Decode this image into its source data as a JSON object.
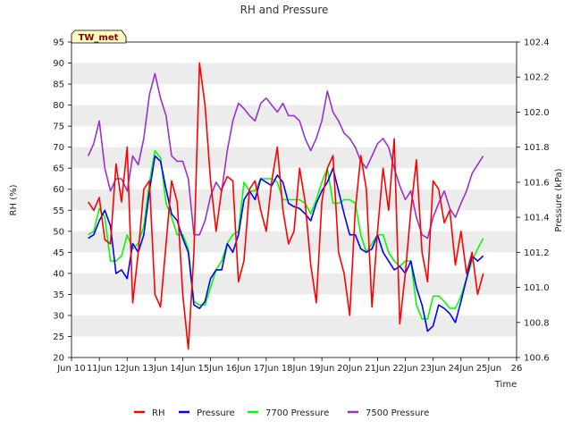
{
  "chart_data": {
    "type": "line",
    "title": "RH and Pressure",
    "badge": "TW_met",
    "xlabel": "Time",
    "ylabel": "RH (%)",
    "y2label": "Pressure (kPa)",
    "xlim": [
      10,
      26
    ],
    "ylim": [
      20,
      95
    ],
    "y2lim": [
      100.6,
      102.4
    ],
    "x_ticks": [
      10,
      11,
      12,
      13,
      14,
      15,
      16,
      17,
      18,
      19,
      20,
      21,
      22,
      23,
      24,
      25,
      26
    ],
    "x_tick_labels": [
      "Jun 10",
      "11Jun",
      "12Jun",
      "13Jun",
      "14Jun",
      "15Jun",
      "16Jun",
      "17Jun",
      "18Jun",
      "19Jun",
      "20Jun",
      "21Jun",
      "22Jun",
      "23Jun",
      "24Jun",
      "25Jun",
      "26"
    ],
    "y_ticks": [
      20,
      25,
      30,
      35,
      40,
      45,
      50,
      55,
      60,
      65,
      70,
      75,
      80,
      85,
      90,
      95
    ],
    "y2_ticks": [
      100.6,
      100.8,
      101.0,
      101.2,
      101.4,
      101.6,
      101.8,
      102.0,
      102.2,
      102.4
    ],
    "y2_tick_labels": [
      "100.6",
      "100.8",
      "101.0",
      "101.2",
      "101.4",
      "101.6",
      "101.8",
      "102.0",
      "102.2",
      "102.4"
    ],
    "grid": "horizontal bands",
    "legend_position": "bottom-center",
    "series": [
      {
        "name": "RH",
        "axis": "left",
        "color": "#ff0000",
        "x": [
          10.6,
          10.8,
          11.0,
          11.2,
          11.4,
          11.6,
          11.8,
          12.0,
          12.2,
          12.4,
          12.6,
          12.8,
          13.0,
          13.2,
          13.4,
          13.6,
          13.8,
          14.0,
          14.2,
          14.4,
          14.6,
          14.8,
          15.0,
          15.2,
          15.4,
          15.6,
          15.8,
          16.0,
          16.2,
          16.4,
          16.6,
          16.8,
          17.0,
          17.2,
          17.4,
          17.6,
          17.8,
          18.0,
          18.2,
          18.4,
          18.6,
          18.8,
          19.0,
          19.2,
          19.4,
          19.6,
          19.8,
          20.0,
          20.2,
          20.4,
          20.6,
          20.8,
          21.0,
          21.2,
          21.4,
          21.6,
          21.8,
          22.0,
          22.2,
          22.4,
          22.6,
          22.8,
          23.0,
          23.2,
          23.4,
          23.6,
          23.8,
          24.0,
          24.2,
          24.4,
          24.6,
          24.8
        ],
        "values": [
          57,
          55,
          58,
          48,
          47,
          66,
          57,
          70,
          33,
          45,
          60,
          62,
          35,
          32,
          47,
          62,
          57,
          35,
          22,
          45,
          90,
          80,
          62,
          50,
          60,
          63,
          62,
          38,
          43,
          60,
          62,
          55,
          50,
          62,
          70,
          55,
          47,
          50,
          65,
          57,
          42,
          33,
          57,
          65,
          68,
          45,
          40,
          30,
          55,
          68,
          60,
          32,
          50,
          65,
          55,
          72,
          28,
          40,
          55,
          67,
          45,
          38,
          62,
          60,
          52,
          55,
          42,
          50,
          40,
          45,
          35,
          40
        ]
      },
      {
        "name": "Pressure",
        "axis": "right",
        "color": "#0000ff",
        "x": [
          10.6,
          10.8,
          11.0,
          11.2,
          11.4,
          11.6,
          11.8,
          12.0,
          12.2,
          12.4,
          12.6,
          12.8,
          13.0,
          13.2,
          13.4,
          13.6,
          13.8,
          14.0,
          14.2,
          14.4,
          14.6,
          14.8,
          15.0,
          15.2,
          15.4,
          15.6,
          15.8,
          16.0,
          16.2,
          16.4,
          16.6,
          16.8,
          17.0,
          17.2,
          17.4,
          17.6,
          17.8,
          18.0,
          18.2,
          18.4,
          18.6,
          18.8,
          19.0,
          19.2,
          19.4,
          19.6,
          19.8,
          20.0,
          20.2,
          20.4,
          20.6,
          20.8,
          21.0,
          21.2,
          21.4,
          21.6,
          21.8,
          22.0,
          22.2,
          22.4,
          22.6,
          22.8,
          23.0,
          23.2,
          23.4,
          23.6,
          23.8,
          24.0,
          24.2,
          24.4,
          24.6,
          24.8
        ],
        "values": [
          101.28,
          101.3,
          101.38,
          101.44,
          101.35,
          101.08,
          101.1,
          101.05,
          101.25,
          101.2,
          101.3,
          101.55,
          101.75,
          101.72,
          101.56,
          101.42,
          101.38,
          101.28,
          101.2,
          100.9,
          100.88,
          100.92,
          101.05,
          101.1,
          101.1,
          101.25,
          101.2,
          101.3,
          101.5,
          101.55,
          101.5,
          101.62,
          101.6,
          101.58,
          101.64,
          101.6,
          101.48,
          101.46,
          101.45,
          101.42,
          101.38,
          101.48,
          101.55,
          101.6,
          101.68,
          101.55,
          101.42,
          101.3,
          101.3,
          101.22,
          101.2,
          101.22,
          101.3,
          101.2,
          101.15,
          101.1,
          101.12,
          101.08,
          101.15,
          101.0,
          100.9,
          100.75,
          100.78,
          100.9,
          100.88,
          100.85,
          100.8,
          100.92,
          101.05,
          101.18,
          101.15,
          101.18
        ]
      },
      {
        "name": "7700 Pressure",
        "axis": "right",
        "color": "#00ff00",
        "x": [
          10.6,
          10.8,
          11.0,
          11.2,
          11.4,
          11.6,
          11.8,
          12.0,
          12.2,
          12.4,
          12.6,
          12.8,
          13.0,
          13.2,
          13.4,
          13.6,
          13.8,
          14.0,
          14.2,
          14.4,
          14.6,
          14.8,
          15.0,
          15.2,
          15.4,
          15.6,
          15.8,
          16.0,
          16.2,
          16.4,
          16.6,
          16.8,
          17.0,
          17.2,
          17.4,
          17.6,
          17.8,
          18.0,
          18.2,
          18.4,
          18.6,
          18.8,
          19.0,
          19.2,
          19.4,
          19.6,
          19.8,
          20.0,
          20.2,
          20.4,
          20.6,
          20.8,
          21.0,
          21.2,
          21.4,
          21.6,
          21.8,
          22.0,
          22.2,
          22.4,
          22.6,
          22.8,
          23.0,
          23.2,
          23.4,
          23.6,
          23.8,
          24.0,
          24.2,
          24.4,
          24.6,
          24.8
        ],
        "values": [
          101.3,
          101.32,
          101.45,
          101.4,
          101.15,
          101.15,
          101.18,
          101.3,
          101.22,
          101.25,
          101.35,
          101.6,
          101.78,
          101.74,
          101.48,
          101.4,
          101.3,
          101.3,
          101.22,
          100.92,
          100.9,
          100.9,
          101.0,
          101.1,
          101.15,
          101.25,
          101.3,
          101.32,
          101.6,
          101.55,
          101.55,
          101.62,
          101.62,
          101.62,
          101.6,
          101.5,
          101.5,
          101.5,
          101.5,
          101.48,
          101.42,
          101.5,
          101.6,
          101.68,
          101.48,
          101.48,
          101.5,
          101.5,
          101.48,
          101.3,
          101.2,
          101.25,
          101.3,
          101.3,
          101.2,
          101.15,
          101.12,
          101.15,
          101.15,
          100.9,
          100.82,
          100.82,
          100.95,
          100.95,
          100.92,
          100.88,
          100.88,
          100.95,
          101.05,
          101.15,
          101.22,
          101.28
        ]
      },
      {
        "name": "7500 Pressure",
        "axis": "right",
        "color": "#9932cc",
        "x": [
          10.6,
          10.8,
          11.0,
          11.2,
          11.4,
          11.6,
          11.8,
          12.0,
          12.2,
          12.4,
          12.6,
          12.8,
          13.0,
          13.2,
          13.4,
          13.6,
          13.8,
          14.0,
          14.2,
          14.4,
          14.6,
          14.8,
          15.0,
          15.2,
          15.4,
          15.6,
          15.8,
          16.0,
          16.2,
          16.4,
          16.6,
          16.8,
          17.0,
          17.2,
          17.4,
          17.6,
          17.8,
          18.0,
          18.2,
          18.4,
          18.6,
          18.8,
          19.0,
          19.2,
          19.4,
          19.6,
          19.8,
          20.0,
          20.2,
          20.4,
          20.6,
          20.8,
          21.0,
          21.2,
          21.4,
          21.6,
          21.8,
          22.0,
          22.2,
          22.4,
          22.6,
          22.8,
          23.0,
          23.2,
          23.4,
          23.6,
          23.8,
          24.0,
          24.2,
          24.4,
          24.6,
          24.8
        ],
        "values": [
          101.75,
          101.82,
          101.95,
          101.68,
          101.55,
          101.62,
          101.62,
          101.55,
          101.75,
          101.7,
          101.85,
          102.1,
          102.22,
          102.08,
          101.98,
          101.75,
          101.72,
          101.72,
          101.62,
          101.3,
          101.3,
          101.38,
          101.52,
          101.6,
          101.55,
          101.78,
          101.95,
          102.05,
          102.02,
          101.98,
          101.95,
          102.05,
          102.08,
          102.04,
          102.0,
          102.05,
          101.98,
          101.98,
          101.95,
          101.85,
          101.78,
          101.85,
          101.95,
          102.12,
          102.0,
          101.95,
          101.88,
          101.85,
          101.8,
          101.72,
          101.68,
          101.75,
          101.82,
          101.85,
          101.8,
          101.68,
          101.58,
          101.5,
          101.55,
          101.4,
          101.3,
          101.28,
          101.4,
          101.48,
          101.55,
          101.45,
          101.4,
          101.48,
          101.55,
          101.65,
          101.7,
          101.75
        ]
      }
    ]
  }
}
